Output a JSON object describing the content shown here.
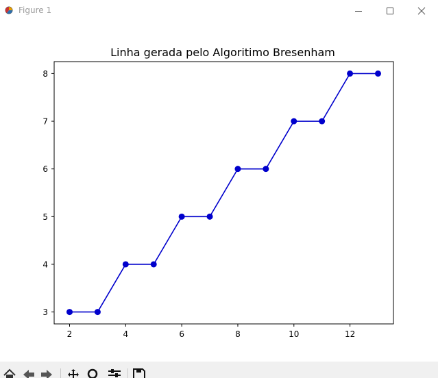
{
  "window": {
    "title": "Figure 1",
    "controls": [
      "minimize-icon",
      "maximize-icon",
      "close-icon"
    ]
  },
  "toolbar": {
    "tools": [
      "home-icon",
      "back-icon",
      "forward-icon",
      "pan-icon",
      "zoom-icon",
      "configure-subplots-icon",
      "save-icon"
    ]
  },
  "chart_data": {
    "type": "line",
    "title": "Linha gerada pelo Algoritimo Bresenham",
    "xlabel": "",
    "ylabel": "",
    "x": [
      2,
      3,
      4,
      5,
      6,
      7,
      8,
      9,
      10,
      11,
      12,
      13
    ],
    "series": [
      {
        "values": [
          3,
          3,
          4,
          4,
          5,
          5,
          6,
          6,
          7,
          7,
          8,
          8
        ],
        "color": "#0000cc",
        "marker": "circle"
      }
    ],
    "xlim": [
      1.45,
      13.55
    ],
    "ylim": [
      2.75,
      8.25
    ],
    "xticks": [
      2,
      4,
      6,
      8,
      10,
      12
    ],
    "yticks": [
      3,
      4,
      5,
      6,
      7,
      8
    ],
    "grid": false,
    "legend": "none"
  }
}
